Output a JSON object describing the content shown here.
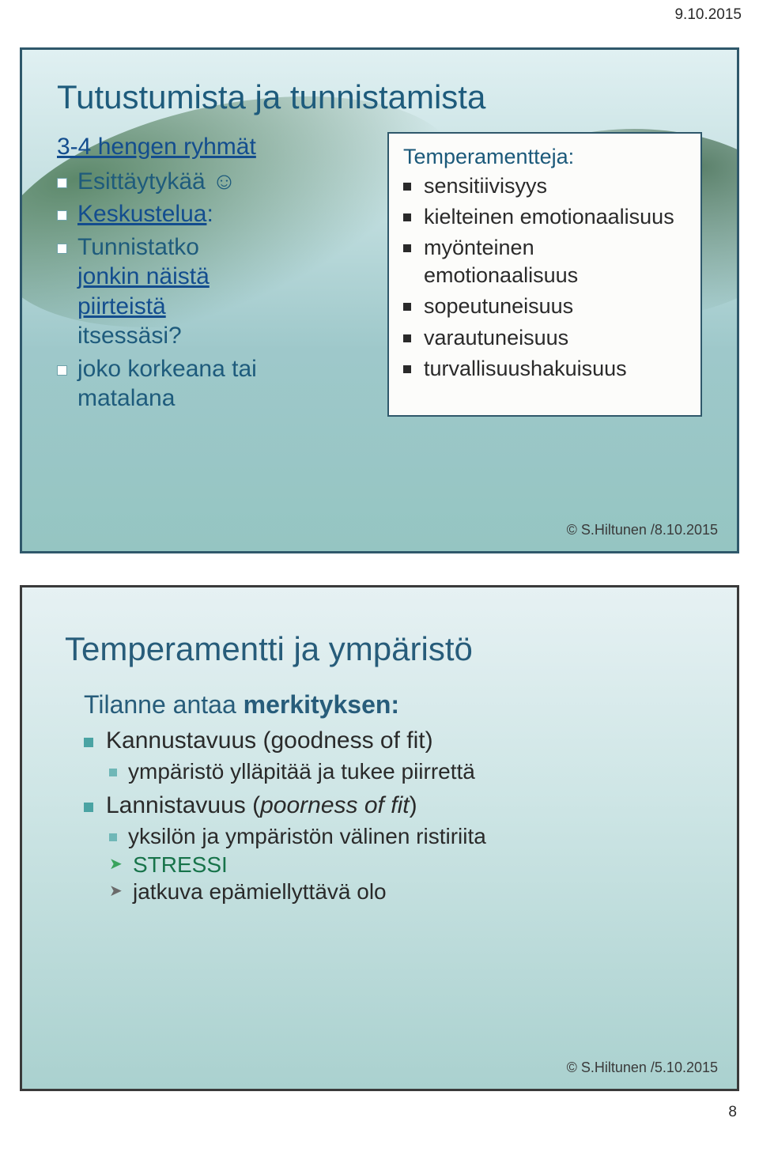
{
  "header": {
    "date": "9.10.2015"
  },
  "slide1": {
    "border_color": "#2f586b",
    "title": "Tutustumista ja tunnistamista",
    "title_color": "#1e5b7c",
    "left": {
      "subtitle": "3-4 hengen ryhmät",
      "items": [
        {
          "text_a": "Esittäytykää ",
          "smile": "☺",
          "color": "#1e5b7c"
        },
        {
          "text_a": "Keskustelua",
          "link": true,
          "suffix": ":",
          "color": "#134d8e"
        },
        {
          "text_a": "Tunnistatko ",
          "line2_a": "jonkin näistä",
          "line2_link": true,
          "line3": "piirteistä",
          "line4": "itsessäsi?",
          "color": "#1e5b7c"
        },
        {
          "text_a": "joko korkeana tai ",
          "line2_a": "matalana",
          "color": "#1e5b7c"
        }
      ]
    },
    "right": {
      "head": "Temperamentteja:",
      "items": [
        "sensitiivisyys",
        "kielteinen emotionaalisuus",
        "myönteinen emotionaalisuus",
        "sopeutuneisuus",
        "varautuneisuus",
        "turvallisuushakuisuus"
      ]
    },
    "copyright": "© S.Hiltunen /8.10.2015"
  },
  "slide2": {
    "border_color": "#3a3a3a",
    "title": "Temperamentti ja ympäristö",
    "subtitle_pre": "Tilanne antaa ",
    "subtitle_bold": "merkityksen:",
    "line1_pre": "Kannustavuus ",
    "line1_paren": "(goodness of fit)",
    "line1_sub": "ympäristö ylläpitää ja tukee piirrettä",
    "line2_pre": "Lannistavuus (",
    "line2_it": "poorness of fit",
    "line2_post": ")",
    "line2_sub": "yksilön ja ympäristön välinen ristiriita",
    "chev1": "STRESSI",
    "chev1_color": "#17734a",
    "chev2": "jatkuva epämiellyttävä olo",
    "chev2_color": "#2a2a2a",
    "copyright": "© S.Hiltunen /5.10.2015"
  },
  "footer": {
    "page": "8"
  }
}
